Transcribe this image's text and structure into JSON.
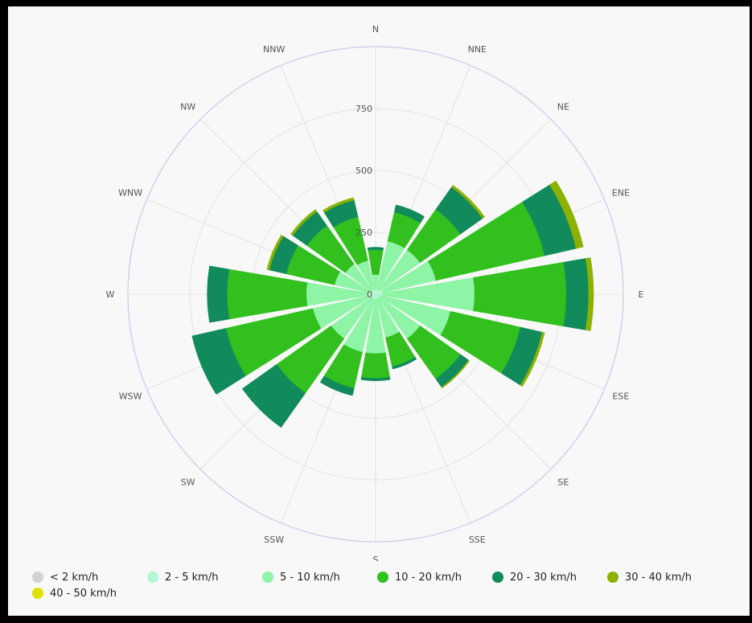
{
  "chart_data": {
    "type": "windrose",
    "directions": [
      "N",
      "NNE",
      "NE",
      "ENE",
      "E",
      "ESE",
      "SE",
      "SSE",
      "S",
      "SSW",
      "SW",
      "WSW",
      "W",
      "WNW",
      "NW",
      "NNW"
    ],
    "radial_ticks": [
      "0",
      "250",
      "500",
      "750"
    ],
    "rmax": 1000,
    "series": [
      {
        "name": "< 2 km/h",
        "color": "#d3d3d3",
        "values": [
          0,
          0,
          0,
          0,
          0,
          0,
          0,
          0,
          0,
          0,
          0,
          0,
          0,
          0,
          0,
          0
        ]
      },
      {
        "name": "2 - 5 km/h",
        "color": "#b4f5d2",
        "values": [
          20,
          20,
          20,
          30,
          30,
          20,
          20,
          20,
          20,
          20,
          20,
          30,
          30,
          20,
          20,
          20
        ]
      },
      {
        "name": "5 - 10 km/h",
        "color": "#8ef4a6",
        "values": [
          60,
          200,
          200,
          220,
          370,
          290,
          200,
          160,
          220,
          220,
          200,
          230,
          250,
          150,
          130,
          120
        ]
      },
      {
        "name": "10 - 20 km/h",
        "color": "#31c01e",
        "values": [
          100,
          120,
          200,
          450,
          370,
          290,
          200,
          120,
          100,
          150,
          270,
          360,
          320,
          200,
          190,
          180
        ]
      },
      {
        "name": "20 - 30 km/h",
        "color": "#118a5c",
        "values": [
          10,
          30,
          110,
          130,
          90,
          90,
          40,
          10,
          10,
          30,
          170,
          140,
          80,
          70,
          70,
          70
        ]
      },
      {
        "name": "30 - 40 km/h",
        "color": "#8cb100",
        "values": [
          0,
          0,
          10,
          30,
          20,
          10,
          5,
          0,
          0,
          0,
          0,
          0,
          0,
          10,
          10,
          10
        ]
      },
      {
        "name": "40 - 50 km/h",
        "color": "#e0df00",
        "values": [
          0,
          0,
          0,
          0,
          0,
          0,
          0,
          0,
          0,
          0,
          0,
          0,
          0,
          0,
          0,
          0
        ]
      }
    ]
  }
}
